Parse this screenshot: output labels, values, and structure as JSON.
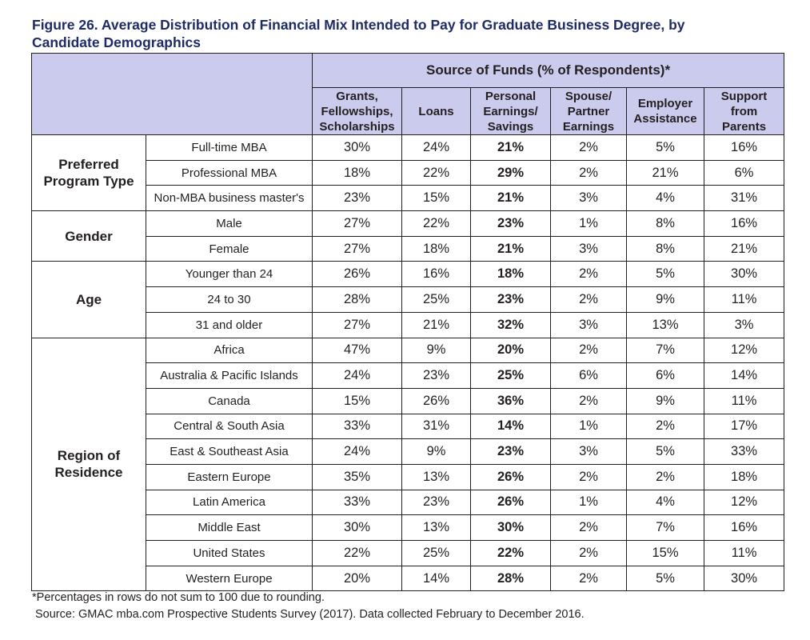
{
  "title_line1": "Figure 26. Average Distribution of Financial Mix Intended to Pay for Graduate Business Degree, by",
  "title_line2": "Candidate Demographics",
  "source_header": "Source of Funds (% of Respondents)*",
  "columns": [
    [
      "Grants,",
      "Fellowships,",
      "Scholarships"
    ],
    [
      "Loans"
    ],
    [
      "Personal",
      "Earnings/",
      "Savings"
    ],
    [
      "Spouse/",
      "Partner",
      "Earnings"
    ],
    [
      "Employer",
      "Assistance"
    ],
    [
      "Support",
      "from",
      "Parents"
    ]
  ],
  "groups": [
    {
      "label": [
        "Preferred",
        "Program Type"
      ],
      "rows": [
        {
          "label": "Full-time MBA",
          "values": [
            "30%",
            "24%",
            "21%",
            "2%",
            "5%",
            "16%"
          ]
        },
        {
          "label": "Professional MBA",
          "values": [
            "18%",
            "22%",
            "29%",
            "2%",
            "21%",
            "6%"
          ]
        },
        {
          "label": "Non-MBA business master's",
          "values": [
            "23%",
            "15%",
            "21%",
            "3%",
            "4%",
            "31%"
          ]
        }
      ]
    },
    {
      "label": [
        "Gender"
      ],
      "rows": [
        {
          "label": "Male",
          "values": [
            "27%",
            "22%",
            "23%",
            "1%",
            "8%",
            "16%"
          ]
        },
        {
          "label": "Female",
          "values": [
            "27%",
            "18%",
            "21%",
            "3%",
            "8%",
            "21%"
          ]
        }
      ]
    },
    {
      "label": [
        "Age"
      ],
      "rows": [
        {
          "label": "Younger than 24",
          "values": [
            "26%",
            "16%",
            "18%",
            "2%",
            "5%",
            "30%"
          ]
        },
        {
          "label": "24 to 30",
          "values": [
            "28%",
            "25%",
            "23%",
            "2%",
            "9%",
            "11%"
          ]
        },
        {
          "label": "31 and older",
          "values": [
            "27%",
            "21%",
            "32%",
            "3%",
            "13%",
            "3%"
          ]
        }
      ]
    },
    {
      "label": [
        "Region of",
        "Residence"
      ],
      "rows": [
        {
          "label": "Africa",
          "values": [
            "47%",
            "9%",
            "20%",
            "2%",
            "7%",
            "12%"
          ]
        },
        {
          "label": "Australia & Pacific Islands",
          "values": [
            "24%",
            "23%",
            "25%",
            "6%",
            "6%",
            "14%"
          ]
        },
        {
          "label": "Canada",
          "values": [
            "15%",
            "26%",
            "36%",
            "2%",
            "9%",
            "11%"
          ]
        },
        {
          "label": "Central & South Asia",
          "values": [
            "33%",
            "31%",
            "14%",
            "1%",
            "2%",
            "17%"
          ]
        },
        {
          "label": "East & Southeast Asia",
          "values": [
            "24%",
            "9%",
            "23%",
            "3%",
            "5%",
            "33%"
          ]
        },
        {
          "label": "Eastern Europe",
          "values": [
            "35%",
            "13%",
            "26%",
            "2%",
            "2%",
            "18%"
          ]
        },
        {
          "label": "Latin America",
          "values": [
            "33%",
            "23%",
            "26%",
            "1%",
            "4%",
            "12%"
          ]
        },
        {
          "label": "Middle East",
          "values": [
            "30%",
            "13%",
            "30%",
            "2%",
            "7%",
            "16%"
          ]
        },
        {
          "label": "United States",
          "values": [
            "22%",
            "25%",
            "22%",
            "2%",
            "15%",
            "11%"
          ]
        },
        {
          "label": "Western Europe",
          "values": [
            "20%",
            "14%",
            "28%",
            "2%",
            "5%",
            "30%"
          ]
        }
      ]
    }
  ],
  "bold_column_index": 2,
  "header_color": "#cbcbed",
  "title_color": "#1f2b66",
  "footnote": "*Percentages in rows do not sum to 100 due to rounding.",
  "source": "Source: GMAC mba.com Prospective Students Survey (2017). Data collected February to December 2016."
}
